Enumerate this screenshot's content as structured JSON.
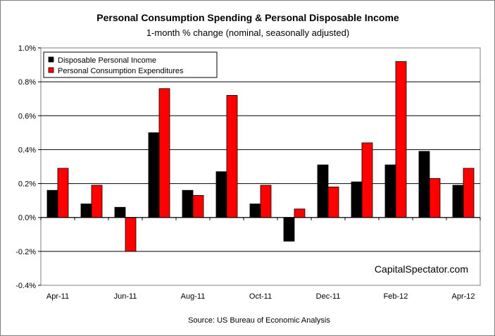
{
  "chart_data": {
    "type": "bar",
    "title": "Personal Consumption Spending & Personal Disposable Income",
    "subtitle": "1-month % change (nominal, seasonally adjusted)",
    "xlabel": "",
    "ylabel": "",
    "categories": [
      "Apr-11",
      "May-11",
      "Jun-11",
      "Jul-11",
      "Aug-11",
      "Sep-11",
      "Oct-11",
      "Nov-11",
      "Dec-11",
      "Jan-12",
      "Feb-12",
      "Mar-12",
      "Apr-12"
    ],
    "category_labels_shown": [
      "Apr-11",
      "",
      "Jun-11",
      "",
      "Aug-11",
      "",
      "Oct-11",
      "",
      "Dec-11",
      "",
      "Feb-12",
      "",
      "Apr-12"
    ],
    "series": [
      {
        "name": "Disposable Personal Income",
        "color": "#000000",
        "values": [
          0.16,
          0.08,
          0.06,
          0.5,
          0.16,
          0.27,
          0.08,
          -0.14,
          0.31,
          0.21,
          0.31,
          0.39,
          0.19
        ]
      },
      {
        "name": "Personal Consumption Expenditures",
        "color": "#ff0000",
        "values": [
          0.29,
          0.19,
          -0.2,
          0.76,
          0.13,
          0.72,
          0.19,
          0.05,
          0.18,
          0.44,
          0.92,
          0.23,
          0.29
        ]
      }
    ],
    "ylim": [
      -0.4,
      1.0
    ],
    "yticks": [
      -0.4,
      -0.2,
      0.0,
      0.2,
      0.4,
      0.6,
      0.8,
      1.0
    ],
    "ytick_labels": [
      "-0.4%",
      "-0.2%",
      "0.0%",
      "0.2%",
      "0.4%",
      "0.6%",
      "0.8%",
      "1.0%"
    ],
    "grid": true,
    "legend_position": "top-left",
    "watermark": "CapitalSpectator.com",
    "source": "Source: US Bureau of Economic Analysis"
  }
}
